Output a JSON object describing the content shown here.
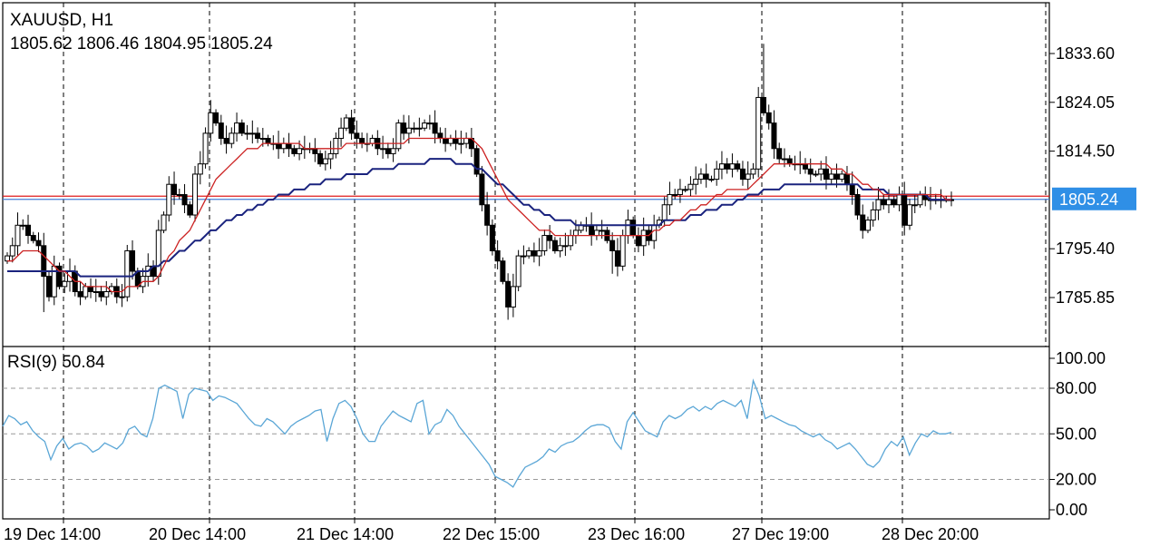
{
  "header": {
    "symbol": "XAUUSD",
    "timeframe": "H1",
    "open": "1805.62",
    "high": "1806.46",
    "low": "1804.95",
    "close": "1805.24"
  },
  "rsi_header": {
    "name": "RSI(9)",
    "value": "50.84"
  },
  "colors": {
    "background": "#ffffff",
    "candle": "#000000",
    "ma_fast": "#cc2222",
    "ma_slow": "#1a237e",
    "rsi_line": "#5aa6d6",
    "price_tag_bg": "#2f8fe6",
    "ask_line": "#e11d1d",
    "bid_line": "#4a7fd6"
  },
  "price_tag": "1805.24",
  "chart_data": [
    {
      "type": "candlestick",
      "title": "XAUUSD, H1",
      "ylim": [
        1780,
        1840
      ],
      "yticks": [
        "1833.60",
        "1824.05",
        "1814.50",
        "1805.24",
        "1795.40",
        "1785.85"
      ],
      "xtick_labels": [
        "19 Dec 14:00",
        "20 Dec 14:00",
        "21 Dec 14:00",
        "22 Dec 15:00",
        "23 Dec 16:00",
        "27 Dec 19:00",
        "28 Dec 20:00"
      ],
      "grid": "dashed vertical session separators",
      "last_price": 1805.24,
      "close_series": [
        1794,
        1796,
        1800,
        1800,
        1798,
        1797,
        1796,
        1790,
        1786,
        1792,
        1788,
        1789,
        1791,
        1787,
        1786,
        1788,
        1787,
        1787,
        1786,
        1787,
        1788,
        1786,
        1786,
        1795,
        1791,
        1788,
        1790,
        1792,
        1790,
        1799,
        1802,
        1808,
        1806,
        1806,
        1804,
        1802,
        1810,
        1812,
        1818,
        1822,
        1820,
        1817,
        1816,
        1818,
        1820,
        1818,
        1818,
        1818,
        1817,
        1817,
        1816,
        1816,
        1815,
        1816,
        1815,
        1814,
        1815,
        1815,
        1815,
        1814,
        1812,
        1813,
        1814,
        1817,
        1819,
        1821,
        1818,
        1817,
        1816,
        1816,
        1817,
        1815,
        1815,
        1814,
        1815,
        1820,
        1818,
        1819,
        1819,
        1819,
        1820,
        1820,
        1818,
        1817,
        1816,
        1817,
        1816,
        1816,
        1817,
        1815,
        1810,
        1804,
        1800,
        1795,
        1793,
        1789,
        1784,
        1788,
        1794,
        1794,
        1795,
        1794,
        1795,
        1798,
        1797,
        1795,
        1796,
        1796,
        1798,
        1799,
        1800,
        1800,
        1798,
        1799,
        1799,
        1797,
        1795,
        1792,
        1798,
        1801,
        1798,
        1796,
        1799,
        1797,
        1800,
        1801,
        1804,
        1806,
        1806,
        1807,
        1807,
        1808,
        1809,
        1810,
        1809,
        1809,
        1811,
        1812,
        1811,
        1812,
        1811,
        1809,
        1810,
        1811,
        1825,
        1822,
        1820,
        1815,
        1813,
        1813,
        1812,
        1812,
        1812,
        1811,
        1810,
        1810,
        1811,
        1809,
        1810,
        1809,
        1810,
        1808,
        1806,
        1802,
        1799,
        1801,
        1803,
        1805,
        1804,
        1805,
        1804,
        1806,
        1800,
        1804,
        1804,
        1806,
        1805,
        1805,
        1805,
        1805,
        1805,
        1805
      ],
      "ma_fast_series": [
        1793,
        1793,
        1794,
        1795,
        1795,
        1795,
        1795,
        1794,
        1793,
        1792,
        1791,
        1791,
        1790,
        1789,
        1789,
        1788,
        1788,
        1788,
        1788,
        1788,
        1787,
        1787,
        1787,
        1788,
        1788,
        1788,
        1789,
        1789,
        1789,
        1790,
        1792,
        1794,
        1795,
        1797,
        1798,
        1799,
        1801,
        1803,
        1805,
        1807,
        1809,
        1810,
        1811,
        1812,
        1813,
        1814,
        1815,
        1815,
        1815,
        1816,
        1816,
        1816,
        1816,
        1816,
        1816,
        1816,
        1816,
        1815,
        1815,
        1815,
        1815,
        1815,
        1815,
        1815,
        1815,
        1816,
        1816,
        1816,
        1816,
        1816,
        1816,
        1816,
        1816,
        1816,
        1816,
        1816,
        1816,
        1817,
        1817,
        1817,
        1817,
        1817,
        1817,
        1817,
        1817,
        1817,
        1817,
        1817,
        1817,
        1817,
        1816,
        1815,
        1813,
        1811,
        1809,
        1807,
        1805,
        1804,
        1803,
        1802,
        1801,
        1800,
        1799,
        1799,
        1799,
        1798,
        1798,
        1798,
        1798,
        1798,
        1798,
        1798,
        1798,
        1798,
        1798,
        1798,
        1798,
        1798,
        1798,
        1798,
        1798,
        1798,
        1798,
        1798,
        1799,
        1799,
        1800,
        1800,
        1801,
        1801,
        1802,
        1803,
        1803,
        1804,
        1804,
        1805,
        1806,
        1806,
        1807,
        1807,
        1807,
        1807,
        1807,
        1808,
        1809,
        1810,
        1811,
        1812,
        1812,
        1812,
        1812,
        1812,
        1812,
        1812,
        1812,
        1812,
        1812,
        1812,
        1811,
        1811,
        1811,
        1810,
        1810,
        1809,
        1808,
        1808,
        1807,
        1807,
        1806,
        1806,
        1806,
        1806,
        1806,
        1806,
        1806,
        1806,
        1806,
        1806,
        1806,
        1806,
        1805,
        1805
      ],
      "ma_slow_series": [
        1791,
        1791,
        1791,
        1791,
        1791,
        1791,
        1791,
        1791,
        1791,
        1791,
        1791,
        1791,
        1791,
        1791,
        1790,
        1790,
        1790,
        1790,
        1790,
        1790,
        1790,
        1790,
        1790,
        1790,
        1790,
        1791,
        1791,
        1791,
        1792,
        1792,
        1793,
        1793,
        1794,
        1795,
        1795,
        1796,
        1797,
        1797,
        1798,
        1799,
        1799,
        1800,
        1801,
        1801,
        1802,
        1802,
        1803,
        1803,
        1804,
        1804,
        1805,
        1805,
        1806,
        1806,
        1806,
        1807,
        1807,
        1807,
        1808,
        1808,
        1808,
        1809,
        1809,
        1809,
        1809,
        1810,
        1810,
        1810,
        1810,
        1810,
        1811,
        1811,
        1811,
        1811,
        1811,
        1812,
        1812,
        1812,
        1812,
        1812,
        1812,
        1813,
        1813,
        1813,
        1813,
        1813,
        1812,
        1812,
        1812,
        1812,
        1811,
        1811,
        1810,
        1809,
        1808,
        1808,
        1807,
        1806,
        1805,
        1804,
        1804,
        1803,
        1803,
        1802,
        1802,
        1801,
        1801,
        1801,
        1801,
        1800,
        1800,
        1800,
        1800,
        1800,
        1800,
        1800,
        1800,
        1800,
        1800,
        1800,
        1800,
        1800,
        1800,
        1800,
        1800,
        1800,
        1801,
        1801,
        1801,
        1801,
        1801,
        1802,
        1802,
        1802,
        1803,
        1803,
        1803,
        1804,
        1804,
        1804,
        1805,
        1805,
        1806,
        1806,
        1806,
        1807,
        1807,
        1807,
        1807,
        1808,
        1808,
        1808,
        1808,
        1808,
        1808,
        1808,
        1808,
        1808,
        1808,
        1808,
        1808,
        1808,
        1808,
        1808,
        1807,
        1807,
        1807,
        1807,
        1807,
        1806,
        1806,
        1806,
        1806,
        1806,
        1806,
        1806,
        1806,
        1805,
        1805,
        1805,
        1805,
        1805
      ]
    },
    {
      "type": "line",
      "title": "RSI(9) 50.84",
      "ylim": [
        0,
        100
      ],
      "yticks": [
        "100.00",
        "80.00",
        "50.00",
        "20.00",
        "0.00"
      ],
      "values": [
        55,
        62,
        60,
        56,
        58,
        52,
        48,
        45,
        33,
        42,
        47,
        40,
        43,
        44,
        42,
        38,
        40,
        44,
        42,
        40,
        44,
        53,
        55,
        50,
        48,
        60,
        80,
        82,
        80,
        78,
        60,
        76,
        80,
        79,
        78,
        72,
        75,
        74,
        72,
        70,
        65,
        60,
        56,
        55,
        60,
        58,
        54,
        50,
        55,
        58,
        60,
        62,
        65,
        66,
        45,
        60,
        70,
        72,
        68,
        60,
        50,
        45,
        45,
        55,
        60,
        65,
        62,
        60,
        58,
        70,
        72,
        50,
        56,
        58,
        66,
        62,
        55,
        50,
        45,
        40,
        35,
        30,
        22,
        20,
        18,
        15,
        22,
        28,
        30,
        32,
        35,
        40,
        38,
        42,
        44,
        45,
        48,
        52,
        55,
        56,
        56,
        54,
        45,
        40,
        58,
        64,
        58,
        52,
        50,
        48,
        58,
        62,
        60,
        62,
        66,
        68,
        65,
        68,
        66,
        70,
        72,
        70,
        68,
        72,
        60,
        85,
        75,
        60,
        62,
        60,
        58,
        56,
        55,
        52,
        50,
        48,
        50,
        46,
        44,
        40,
        42,
        44,
        40,
        35,
        30,
        28,
        32,
        40,
        45,
        42,
        48,
        36,
        44,
        50,
        48,
        52,
        50,
        50,
        51
      ]
    }
  ]
}
